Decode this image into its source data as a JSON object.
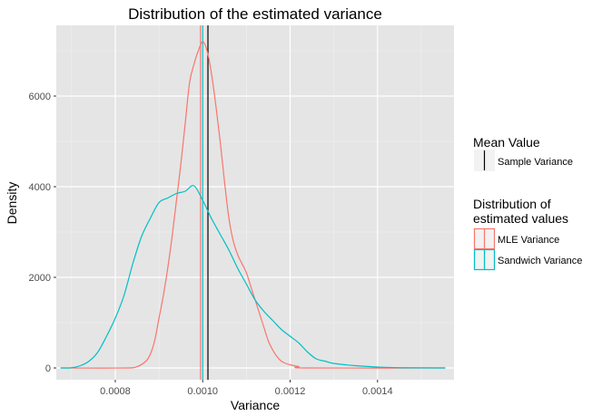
{
  "chart_data": {
    "type": "line",
    "title": "Distribution of the estimated variance",
    "xlabel": "Variance",
    "ylabel": "Density",
    "xlim": [
      0.000665,
      0.001575
    ],
    "ylim": [
      -260,
      7560
    ],
    "x_ticks": [
      0.0008,
      0.001,
      0.0012,
      0.0014
    ],
    "x_tick_labels": [
      "0.0008",
      "0.0010",
      "0.0012",
      "0.0014"
    ],
    "y_ticks": [
      0,
      2000,
      4000,
      6000
    ],
    "y_tick_labels": [
      "0",
      "2000",
      "4000",
      "6000"
    ],
    "grid": true,
    "background": "#e5e5e5",
    "legend": {
      "position": "right",
      "groups": [
        {
          "title": "Mean Value",
          "items": [
            {
              "label": "Sample Variance",
              "color": "#000000",
              "key": "vline"
            }
          ]
        },
        {
          "title": "Distribution of\nestimated values",
          "items": [
            {
              "label": "MLE Variance",
              "color": "#f8766d",
              "key": "box"
            },
            {
              "label": "Sandwich Variance",
              "color": "#00bfc4",
              "key": "box"
            }
          ]
        }
      ]
    },
    "series": [
      {
        "name": "MLE Variance",
        "color": "#f8766d",
        "x": [
          0.000675,
          0.00082,
          0.00085,
          0.00087,
          0.00088,
          0.00089,
          0.0009,
          0.00091,
          0.00092,
          0.00093,
          0.00094,
          0.00095,
          0.00096,
          0.00097,
          0.00098,
          0.00099,
          0.001,
          0.00101,
          0.00102,
          0.00103,
          0.00104,
          0.00105,
          0.00106,
          0.00107,
          0.00108,
          0.00109,
          0.0011,
          0.00111,
          0.00112,
          0.00113,
          0.00114,
          0.00115,
          0.00116,
          0.00117,
          0.00118,
          0.00119,
          0.0012,
          0.00122,
          0.00124,
          0.001555
        ],
        "y": [
          0,
          0,
          30,
          150,
          300,
          600,
          1100,
          1600,
          2200,
          2900,
          3700,
          4500,
          5400,
          6300,
          6700,
          7000,
          7200,
          7000,
          6500,
          5800,
          5000,
          4100,
          3300,
          2800,
          2500,
          2300,
          2100,
          1800,
          1500,
          1200,
          900,
          600,
          400,
          250,
          150,
          100,
          70,
          30,
          0,
          0
        ]
      },
      {
        "name": "Sandwich Variance",
        "color": "#00bfc4",
        "x": [
          0.000675,
          0.0007,
          0.00072,
          0.00074,
          0.00076,
          0.00078,
          0.0008,
          0.00082,
          0.00084,
          0.00086,
          0.00088,
          0.0009,
          0.00092,
          0.00094,
          0.00096,
          0.00098,
          0.001,
          0.00102,
          0.00104,
          0.00106,
          0.00108,
          0.0011,
          0.00112,
          0.00114,
          0.00116,
          0.00118,
          0.0012,
          0.00122,
          0.00124,
          0.00126,
          0.00128,
          0.0013,
          0.00135,
          0.0014,
          0.00145,
          0.001555
        ],
        "y": [
          0,
          5,
          50,
          150,
          350,
          700,
          1100,
          1600,
          2300,
          2900,
          3300,
          3650,
          3750,
          3850,
          3900,
          4020,
          3700,
          3300,
          2950,
          2600,
          2200,
          1850,
          1500,
          1250,
          1050,
          850,
          700,
          550,
          350,
          200,
          150,
          100,
          50,
          20,
          5,
          0
        ]
      }
    ],
    "vlines": [
      {
        "name": "MLE Variance mean",
        "x": 0.000995,
        "color": "#f8766d"
      },
      {
        "name": "Sandwich Variance mean",
        "x": 0.001,
        "color": "#00bfc4"
      },
      {
        "name": "Sample Variance",
        "x": 0.001012,
        "color": "#000000"
      }
    ]
  }
}
